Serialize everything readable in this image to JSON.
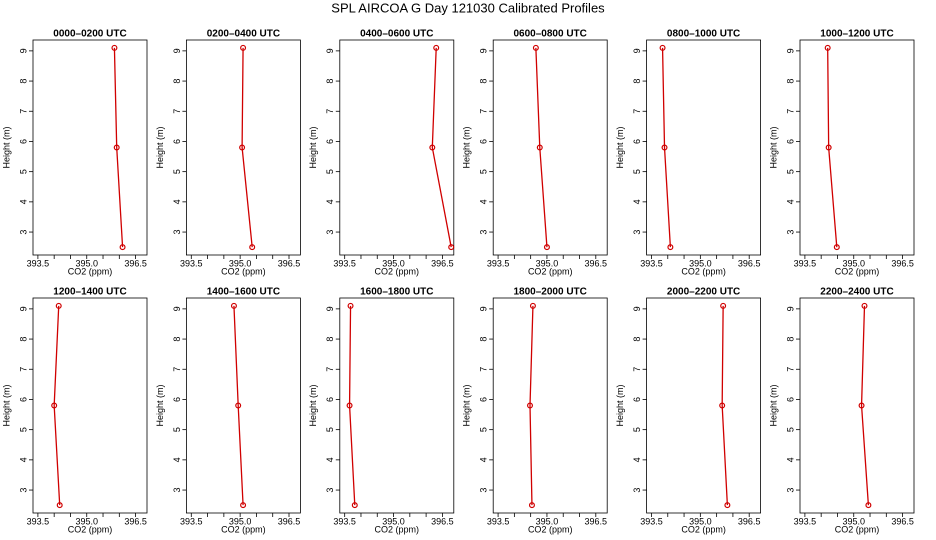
{
  "title": "SPL AIRCOA G  Day 121030  Calibrated Profiles",
  "chart_data": [
    {
      "type": "line",
      "title": "0000–0200 UTC",
      "xlabel": "CO2 (ppm)",
      "ylabel": "Height (m)",
      "x": [
        396.1,
        395.92,
        395.85
      ],
      "values": [
        2.5,
        5.8,
        9.1
      ],
      "color": "#d00000",
      "xlim": [
        393.35,
        396.85
      ],
      "ylim": [
        2.24,
        9.36
      ],
      "xticks": [
        393.5,
        {
          "value": 395,
          "label": "395.0"
        },
        396.5
      ],
      "xticks_minor": [
        394,
        394.5,
        395.5,
        396
      ],
      "yticks": [
        3,
        4,
        5,
        6,
        7,
        8,
        9
      ]
    },
    {
      "type": "line",
      "title": "0200–0400 UTC",
      "xlabel": "CO2 (ppm)",
      "ylabel": "Height (m)",
      "x": [
        395.37,
        395.06,
        395.09
      ],
      "values": [
        2.5,
        5.8,
        9.1
      ],
      "color": "#d00000",
      "xlim": [
        393.35,
        396.85
      ],
      "ylim": [
        2.24,
        9.36
      ],
      "xticks": [
        393.5,
        {
          "value": 395,
          "label": "395.0"
        },
        396.5
      ],
      "xticks_minor": [
        394,
        394.5,
        395.5,
        396
      ],
      "yticks": [
        3,
        4,
        5,
        6,
        7,
        8,
        9
      ]
    },
    {
      "type": "line",
      "title": "0400–0600 UTC",
      "xlabel": "CO2 (ppm)",
      "ylabel": "Height (m)",
      "x": [
        396.77,
        396.19,
        396.31
      ],
      "values": [
        2.5,
        5.8,
        9.1
      ],
      "color": "#d00000",
      "xlim": [
        393.35,
        396.85
      ],
      "ylim": [
        2.24,
        9.36
      ],
      "xticks": [
        393.5,
        {
          "value": 395,
          "label": "395.0"
        },
        396.5
      ],
      "xticks_minor": [
        394,
        394.5,
        395.5,
        396
      ],
      "yticks": [
        3,
        4,
        5,
        6,
        7,
        8,
        9
      ]
    },
    {
      "type": "line",
      "title": "0600–0800 UTC",
      "xlabel": "CO2 (ppm)",
      "ylabel": "Height (m)",
      "x": [
        395.0,
        394.78,
        394.66
      ],
      "values": [
        2.5,
        5.8,
        9.1
      ],
      "color": "#d00000",
      "xlim": [
        393.35,
        396.85
      ],
      "ylim": [
        2.24,
        9.36
      ],
      "xticks": [
        393.5,
        {
          "value": 395,
          "label": "395.0"
        },
        396.5
      ],
      "xticks_minor": [
        394,
        394.5,
        395.5,
        396
      ],
      "yticks": [
        3,
        4,
        5,
        6,
        7,
        8,
        9
      ]
    },
    {
      "type": "line",
      "title": "0800–1000 UTC",
      "xlabel": "CO2 (ppm)",
      "ylabel": "Height (m)",
      "x": [
        394.08,
        393.9,
        393.84
      ],
      "values": [
        2.5,
        5.8,
        9.1
      ],
      "color": "#d00000",
      "xlim": [
        393.35,
        396.85
      ],
      "ylim": [
        2.24,
        9.36
      ],
      "xticks": [
        393.5,
        {
          "value": 395,
          "label": "395.0"
        },
        396.5
      ],
      "xticks_minor": [
        394,
        394.5,
        395.5,
        396
      ],
      "yticks": [
        3,
        4,
        5,
        6,
        7,
        8,
        9
      ]
    },
    {
      "type": "line",
      "title": "1000–1200 UTC",
      "xlabel": "CO2 (ppm)",
      "ylabel": "Height (m)",
      "x": [
        394.48,
        394.23,
        394.2
      ],
      "values": [
        2.5,
        5.8,
        9.1
      ],
      "color": "#d00000",
      "xlim": [
        393.35,
        396.85
      ],
      "ylim": [
        2.24,
        9.36
      ],
      "xticks": [
        393.5,
        {
          "value": 395,
          "label": "395.0"
        },
        396.5
      ],
      "xticks_minor": [
        394,
        394.5,
        395.5,
        396
      ],
      "yticks": [
        3,
        4,
        5,
        6,
        7,
        8,
        9
      ]
    },
    {
      "type": "line",
      "title": "1200–1400 UTC",
      "xlabel": "CO2 (ppm)",
      "ylabel": "Height (m)",
      "x": [
        394.17,
        394.0,
        394.14
      ],
      "values": [
        2.5,
        5.8,
        9.1
      ],
      "color": "#d00000",
      "xlim": [
        393.35,
        396.85
      ],
      "ylim": [
        2.24,
        9.36
      ],
      "xticks": [
        393.5,
        {
          "value": 395,
          "label": "395.0"
        },
        396.5
      ],
      "xticks_minor": [
        394,
        394.5,
        395.5,
        396
      ],
      "yticks": [
        3,
        4,
        5,
        6,
        7,
        8,
        9
      ]
    },
    {
      "type": "line",
      "title": "1400–1600 UTC",
      "xlabel": "CO2 (ppm)",
      "ylabel": "Height (m)",
      "x": [
        395.09,
        394.94,
        394.81
      ],
      "values": [
        2.5,
        5.8,
        9.1
      ],
      "color": "#d00000",
      "xlim": [
        393.35,
        396.85
      ],
      "ylim": [
        2.24,
        9.36
      ],
      "xticks": [
        393.5,
        {
          "value": 395,
          "label": "395.0"
        },
        396.5
      ],
      "xticks_minor": [
        394,
        394.5,
        395.5,
        396
      ],
      "yticks": [
        3,
        4,
        5,
        6,
        7,
        8,
        9
      ]
    },
    {
      "type": "line",
      "title": "1600–1800 UTC",
      "xlabel": "CO2 (ppm)",
      "ylabel": "Height (m)",
      "x": [
        393.81,
        393.65,
        393.68
      ],
      "values": [
        2.5,
        5.8,
        9.1
      ],
      "color": "#d00000",
      "xlim": [
        393.35,
        396.85
      ],
      "ylim": [
        2.24,
        9.36
      ],
      "xticks": [
        393.5,
        {
          "value": 395,
          "label": "395.0"
        },
        396.5
      ],
      "xticks_minor": [
        394,
        394.5,
        395.5,
        396
      ],
      "yticks": [
        3,
        4,
        5,
        6,
        7,
        8,
        9
      ]
    },
    {
      "type": "line",
      "title": "1800–2000 UTC",
      "xlabel": "CO2 (ppm)",
      "ylabel": "Height (m)",
      "x": [
        394.54,
        394.48,
        394.57
      ],
      "values": [
        2.5,
        5.8,
        9.1
      ],
      "color": "#d00000",
      "xlim": [
        393.35,
        396.85
      ],
      "ylim": [
        2.24,
        9.36
      ],
      "xticks": [
        393.5,
        {
          "value": 395,
          "label": "395.0"
        },
        396.5
      ],
      "xticks_minor": [
        394,
        394.5,
        395.5,
        396
      ],
      "yticks": [
        3,
        4,
        5,
        6,
        7,
        8,
        9
      ]
    },
    {
      "type": "line",
      "title": "2000–2200 UTC",
      "xlabel": "CO2 (ppm)",
      "ylabel": "Height (m)",
      "x": [
        395.83,
        395.67,
        395.7
      ],
      "values": [
        2.5,
        5.8,
        9.1
      ],
      "color": "#d00000",
      "xlim": [
        393.35,
        396.85
      ],
      "ylim": [
        2.24,
        9.36
      ],
      "xticks": [
        393.5,
        {
          "value": 395,
          "label": "395.0"
        },
        396.5
      ],
      "xticks_minor": [
        394,
        394.5,
        395.5,
        396
      ],
      "yticks": [
        3,
        4,
        5,
        6,
        7,
        8,
        9
      ]
    },
    {
      "type": "line",
      "title": "2200–2400 UTC",
      "xlabel": "CO2 (ppm)",
      "ylabel": "Height (m)",
      "x": [
        395.45,
        395.24,
        395.33
      ],
      "values": [
        2.5,
        5.8,
        9.1
      ],
      "color": "#d00000",
      "xlim": [
        393.35,
        396.85
      ],
      "ylim": [
        2.24,
        9.36
      ],
      "xticks": [
        393.5,
        {
          "value": 395,
          "label": "395.0"
        },
        396.5
      ],
      "xticks_minor": [
        394,
        394.5,
        395.5,
        396
      ],
      "yticks": [
        3,
        4,
        5,
        6,
        7,
        8,
        9
      ]
    }
  ]
}
